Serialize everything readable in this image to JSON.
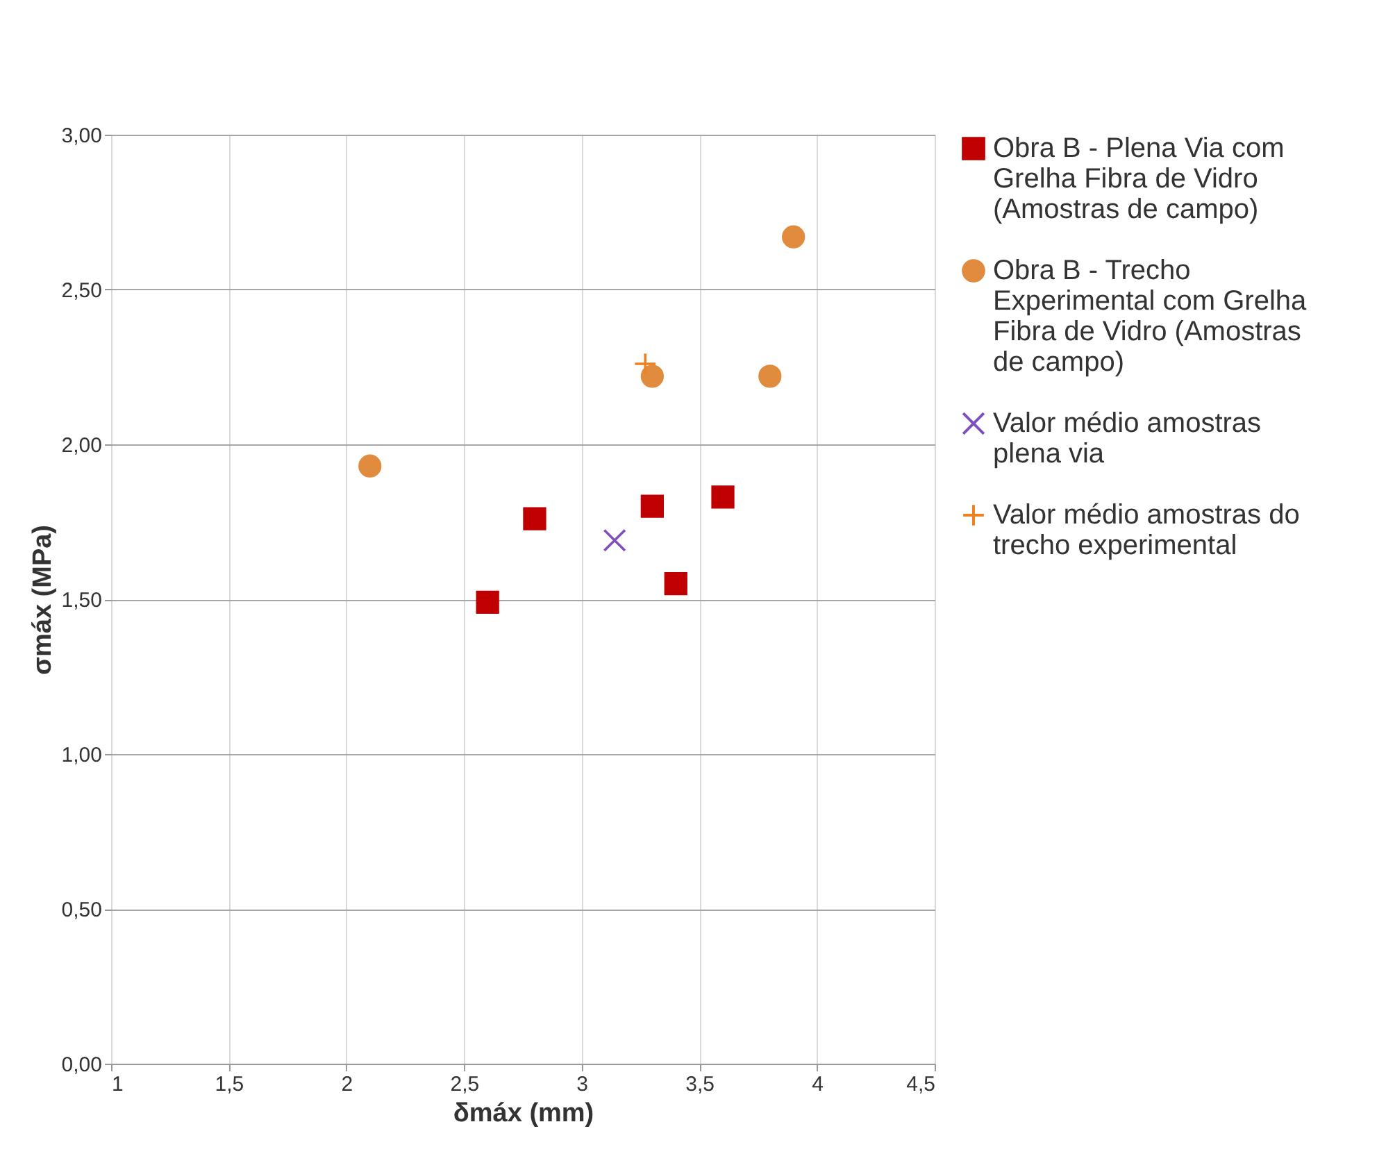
{
  "chart_data": {
    "type": "scatter",
    "xlabel": "δmáx (mm)",
    "ylabel": "σmáx (MPa)",
    "xlim": [
      1,
      4.5
    ],
    "xticks": [
      1,
      {
        "value": 1.5,
        "label": "1,5"
      },
      2,
      {
        "value": 2.5,
        "label": "2,5"
      },
      3,
      {
        "value": 3.5,
        "label": "3,5"
      },
      4,
      {
        "value": 4.5,
        "label": "4,5"
      }
    ],
    "ylim": [
      0,
      3
    ],
    "yticks": [
      {
        "value": 0,
        "label": "0,00"
      },
      {
        "value": 0.5,
        "label": "0,50"
      },
      {
        "value": 1,
        "label": "1,00"
      },
      {
        "value": 1.5,
        "label": "1,50"
      },
      {
        "value": 2,
        "label": "2,00"
      },
      {
        "value": 2.5,
        "label": "2,50"
      },
      {
        "value": 3,
        "label": "3,00"
      }
    ],
    "grid": true,
    "legend": "right",
    "series": [
      {
        "name": "Obra B - Plena Via com Grelha Fibra de Vidro (Amostras de campo)",
        "color": "#c00000",
        "marker": "square",
        "x": [
          2.6,
          2.8,
          3.3,
          3.4,
          3.6
        ],
        "values": [
          1.49,
          1.76,
          1.8,
          1.55,
          1.83
        ]
      },
      {
        "name": "Obra B - Trecho Experimental com Grelha Fibra de Vidro (Amostras de campo)",
        "color": "#e08b3e",
        "marker": "circle",
        "x": [
          2.1,
          3.3,
          3.8,
          3.9
        ],
        "values": [
          1.93,
          2.22,
          2.22,
          2.67
        ]
      },
      {
        "name": "Valor médio amostras plena via",
        "color": "#7f4fbf",
        "marker": "cross",
        "x": [
          3.14
        ],
        "values": [
          1.69
        ]
      },
      {
        "name": "Valor médio amostras do trecho experimental",
        "color": "#f07f1f",
        "marker": "plus",
        "x": [
          3.27
        ],
        "values": [
          2.26
        ]
      }
    ]
  }
}
